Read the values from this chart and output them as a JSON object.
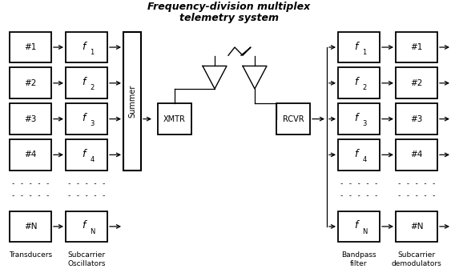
{
  "title_line1": "Frequency-division multiplex",
  "title_line2": "telemetry system",
  "bg_color": "#ffffff",
  "fig_width": 5.73,
  "fig_height": 3.46,
  "dpi": 100,
  "transducer_labels": [
    "#1",
    "#2",
    "#3",
    "#4",
    "#N"
  ],
  "demod_labels": [
    "#1",
    "#2",
    "#3",
    "#4",
    "#N"
  ],
  "sub_labels_main": [
    "f",
    "f",
    "f",
    "f",
    "f"
  ],
  "sub_labels_sub": [
    "1",
    "2",
    "3",
    "4",
    "N"
  ]
}
